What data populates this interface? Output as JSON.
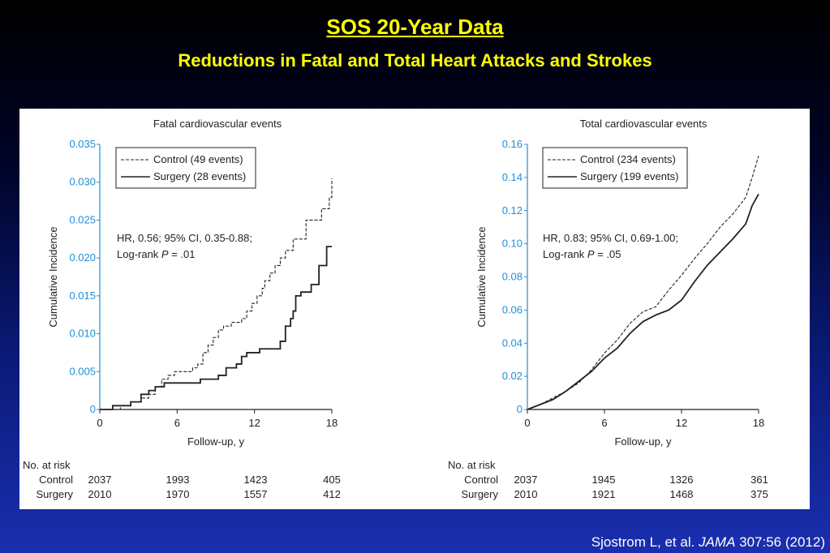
{
  "slide": {
    "title": "SOS 20-Year Data",
    "subtitle": "Reductions in Fatal and Total Heart Attacks and Strokes",
    "citation_prefix": "Sjostrom L, et al. ",
    "citation_journal": "JAMA",
    "citation_suffix": " 307:56 (2012)"
  },
  "colors": {
    "y_tick": "#1f8fd6",
    "title_text": "#ffff00",
    "line": "#222222"
  },
  "chart_data": [
    {
      "type": "line",
      "step": true,
      "title": "Fatal cardiovascular events",
      "xlabel": "Follow-up, y",
      "ylabel": "Cumulative Incidence",
      "xlim": [
        0,
        18
      ],
      "ylim": [
        0,
        0.035
      ],
      "xticks": [
        "0",
        "6",
        "12",
        "18"
      ],
      "yticks": [
        "0",
        "0.005",
        "0.010",
        "0.015",
        "0.020",
        "0.025",
        "0.030",
        "0.035"
      ],
      "annotation_line1": "HR, 0.56; 95% CI, 0.35-0.88;",
      "annotation_line2_prefix": "Log-rank ",
      "annotation_line2_p": "P",
      "annotation_line2_suffix": " = .01",
      "legend_position": "top-left",
      "series": [
        {
          "name": "Control (49 events)",
          "style": "dashed",
          "x": [
            0,
            1.6,
            2.4,
            3.2,
            3.8,
            4.3,
            4.8,
            5.3,
            5.8,
            7.2,
            7.6,
            8.0,
            8.4,
            8.8,
            9.2,
            9.6,
            10.2,
            11.0,
            11.4,
            11.8,
            12.2,
            12.6,
            12.8,
            13.2,
            13.6,
            14.0,
            14.4,
            15.0,
            16.0,
            17.2,
            17.8,
            18.0
          ],
          "y": [
            0,
            0.0005,
            0.001,
            0.0015,
            0.002,
            0.003,
            0.004,
            0.0045,
            0.005,
            0.0055,
            0.006,
            0.0075,
            0.0085,
            0.0095,
            0.0105,
            0.011,
            0.0115,
            0.012,
            0.013,
            0.014,
            0.015,
            0.016,
            0.017,
            0.018,
            0.019,
            0.02,
            0.021,
            0.0225,
            0.025,
            0.0265,
            0.028,
            0.0305
          ]
        },
        {
          "name": "Surgery (28 events)",
          "style": "solid",
          "x": [
            0,
            1.0,
            2.4,
            3.2,
            3.8,
            4.3,
            5.0,
            6.0,
            7.8,
            8.4,
            9.2,
            9.8,
            10.6,
            11.0,
            11.4,
            12.4,
            13.6,
            14.0,
            14.4,
            14.8,
            15.0,
            15.2,
            15.6,
            16.4,
            17.0,
            17.6,
            18.0
          ],
          "y": [
            0,
            0.0005,
            0.001,
            0.002,
            0.0025,
            0.003,
            0.0035,
            0.0035,
            0.004,
            0.004,
            0.0045,
            0.0055,
            0.006,
            0.007,
            0.0075,
            0.008,
            0.008,
            0.009,
            0.011,
            0.012,
            0.013,
            0.015,
            0.0155,
            0.0165,
            0.019,
            0.0215,
            0.0215
          ]
        }
      ],
      "risk_table": {
        "header": "No. at risk",
        "rows": [
          {
            "label": "Control",
            "values": [
              "2037",
              "1993",
              "1423",
              "405"
            ]
          },
          {
            "label": "Surgery",
            "values": [
              "2010",
              "1970",
              "1557",
              "412"
            ]
          }
        ]
      }
    },
    {
      "type": "line",
      "step": true,
      "title": "Total cardiovascular events",
      "xlabel": "Follow-up, y",
      "ylabel": "Cumulative Incidence",
      "xlim": [
        0,
        18
      ],
      "ylim": [
        0,
        0.16
      ],
      "xticks": [
        "0",
        "6",
        "12",
        "18"
      ],
      "yticks": [
        "0",
        "0.02",
        "0.04",
        "0.06",
        "0.08",
        "0.10",
        "0.12",
        "0.14",
        "0.16"
      ],
      "annotation_line1": "HR, 0.83; 95% CI, 0.69-1.00;",
      "annotation_line2_prefix": "Log-rank ",
      "annotation_line2_p": "P",
      "annotation_line2_suffix": " = .05",
      "legend_position": "top-left",
      "series": [
        {
          "name": "Control (234 events)",
          "style": "dashed",
          "x": [
            0,
            1,
            2,
            3,
            4,
            5,
            6,
            7,
            8,
            9,
            10,
            11,
            12,
            13,
            14,
            15,
            16,
            17,
            17.5,
            18
          ],
          "y": [
            0,
            0.003,
            0.007,
            0.011,
            0.016,
            0.024,
            0.034,
            0.042,
            0.052,
            0.059,
            0.062,
            0.072,
            0.081,
            0.091,
            0.1,
            0.11,
            0.118,
            0.128,
            0.14,
            0.153
          ]
        },
        {
          "name": "Surgery (199 events)",
          "style": "solid",
          "x": [
            0,
            1,
            2,
            3,
            4,
            5,
            6,
            7,
            8,
            9,
            10,
            11,
            12,
            13,
            14,
            15,
            16,
            17,
            17.5,
            18
          ],
          "y": [
            0,
            0.003,
            0.006,
            0.011,
            0.017,
            0.023,
            0.031,
            0.037,
            0.046,
            0.053,
            0.057,
            0.06,
            0.066,
            0.077,
            0.087,
            0.095,
            0.103,
            0.112,
            0.123,
            0.13
          ]
        }
      ],
      "risk_table": {
        "header": "No. at risk",
        "rows": [
          {
            "label": "Control",
            "values": [
              "2037",
              "1945",
              "1326",
              "361"
            ]
          },
          {
            "label": "Surgery",
            "values": [
              "2010",
              "1921",
              "1468",
              "375"
            ]
          }
        ]
      }
    }
  ]
}
